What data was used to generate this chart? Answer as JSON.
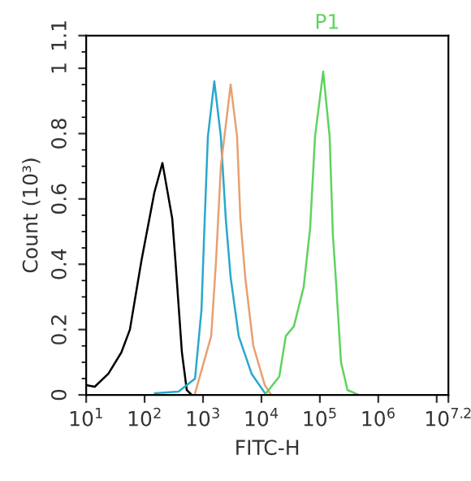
{
  "chart_data": {
    "type": "line",
    "title": "P1",
    "xlabel": "FITC-H",
    "ylabel": "Count (10³)",
    "log": "x",
    "xlim": [
      10,
      15850000
    ],
    "xticks": [
      {
        "value": 10,
        "label": "10$^{1}$"
      },
      {
        "value": 100,
        "label": "10$^{2}$"
      },
      {
        "value": 1000,
        "label": "10$^{3}$"
      },
      {
        "value": 10000,
        "label": "10$^{4}$"
      },
      {
        "value": 100000,
        "label": "10$^{5}$"
      },
      {
        "value": 1000000,
        "label": "10$^{6}$"
      },
      {
        "value": 10000000,
        "label": null
      },
      {
        "value": 15850000,
        "label": "10$^{7.2}$"
      }
    ],
    "ylim": [
      0,
      1.1
    ],
    "yticks": [
      0,
      0.2,
      0.4,
      0.6,
      0.8,
      1,
      1.1
    ],
    "grid": false,
    "legend": false,
    "series": [
      {
        "color": "#000000",
        "x": [
          10,
          14,
          24,
          40,
          56,
          88,
          147,
          202,
          297,
          337,
          435,
          527,
          640
        ],
        "values": [
          0.03,
          0.025,
          0.065,
          0.13,
          0.2,
          0.41,
          0.62,
          0.71,
          0.54,
          0.41,
          0.13,
          0.015,
          0
        ]
      },
      {
        "color": "#29a8cc",
        "x": [
          150,
          380,
          730,
          940,
          1070,
          1210,
          1560,
          2020,
          2450,
          2970,
          4080,
          6810,
          11400
        ],
        "values": [
          0.005,
          0.01,
          0.05,
          0.26,
          0.54,
          0.79,
          0.96,
          0.79,
          0.54,
          0.36,
          0.18,
          0.064,
          0.006
        ]
      },
      {
        "color": "#e8a070",
        "x": [
          730,
          1380,
          1670,
          2020,
          2970,
          3830,
          4360,
          5280,
          7260,
          11400,
          14700
        ],
        "values": [
          0.005,
          0.18,
          0.41,
          0.7,
          0.95,
          0.79,
          0.54,
          0.36,
          0.15,
          0.03,
          0
        ]
      },
      {
        "color": "#5fd35f",
        "x": [
          11400,
          20200,
          26100,
          35900,
          52800,
          68100,
          82600,
          114000,
          147000,
          167000,
          190000,
          230000,
          297000,
          464000
        ],
        "values": [
          0,
          0.056,
          0.18,
          0.21,
          0.33,
          0.51,
          0.79,
          0.99,
          0.79,
          0.49,
          0.34,
          0.1,
          0.015,
          0
        ]
      }
    ]
  }
}
